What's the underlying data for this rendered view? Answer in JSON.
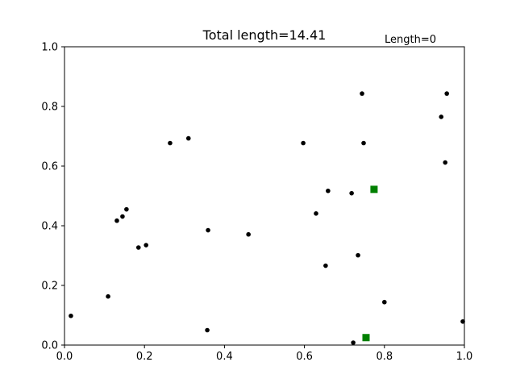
{
  "chart_data": {
    "type": "scatter",
    "title": "Total length=14.41",
    "annotation": "Length=0",
    "xlabel": "",
    "ylabel": "",
    "xlim": [
      0,
      1
    ],
    "ylim": [
      0,
      1
    ],
    "grid": false,
    "x_ticks": [
      "0.0",
      "0.2",
      "0.4",
      "0.6",
      "0.8",
      "1.0"
    ],
    "y_ticks": [
      "0.0",
      "0.2",
      "0.4",
      "0.6",
      "0.8",
      "1.0"
    ],
    "series": [
      {
        "marker": "circle",
        "color": "#000000",
        "points": [
          {
            "x": 0.016,
            "y": 0.098
          },
          {
            "x": 0.109,
            "y": 0.163
          },
          {
            "x": 0.131,
            "y": 0.417
          },
          {
            "x": 0.145,
            "y": 0.431
          },
          {
            "x": 0.155,
            "y": 0.455
          },
          {
            "x": 0.185,
            "y": 0.327
          },
          {
            "x": 0.204,
            "y": 0.335
          },
          {
            "x": 0.264,
            "y": 0.677
          },
          {
            "x": 0.31,
            "y": 0.693
          },
          {
            "x": 0.357,
            "y": 0.05
          },
          {
            "x": 0.359,
            "y": 0.385
          },
          {
            "x": 0.46,
            "y": 0.371
          },
          {
            "x": 0.597,
            "y": 0.677
          },
          {
            "x": 0.629,
            "y": 0.441
          },
          {
            "x": 0.653,
            "y": 0.266
          },
          {
            "x": 0.659,
            "y": 0.517
          },
          {
            "x": 0.718,
            "y": 0.509
          },
          {
            "x": 0.722,
            "y": 0.008
          },
          {
            "x": 0.734,
            "y": 0.301
          },
          {
            "x": 0.744,
            "y": 0.843
          },
          {
            "x": 0.748,
            "y": 0.677
          },
          {
            "x": 0.8,
            "y": 0.144
          },
          {
            "x": 0.942,
            "y": 0.765
          },
          {
            "x": 0.952,
            "y": 0.612
          },
          {
            "x": 0.956,
            "y": 0.843
          },
          {
            "x": 0.996,
            "y": 0.079
          }
        ]
      },
      {
        "marker": "square",
        "color": "#008000",
        "points": [
          {
            "x": 0.774,
            "y": 0.522
          },
          {
            "x": 0.754,
            "y": 0.025
          }
        ]
      }
    ]
  }
}
